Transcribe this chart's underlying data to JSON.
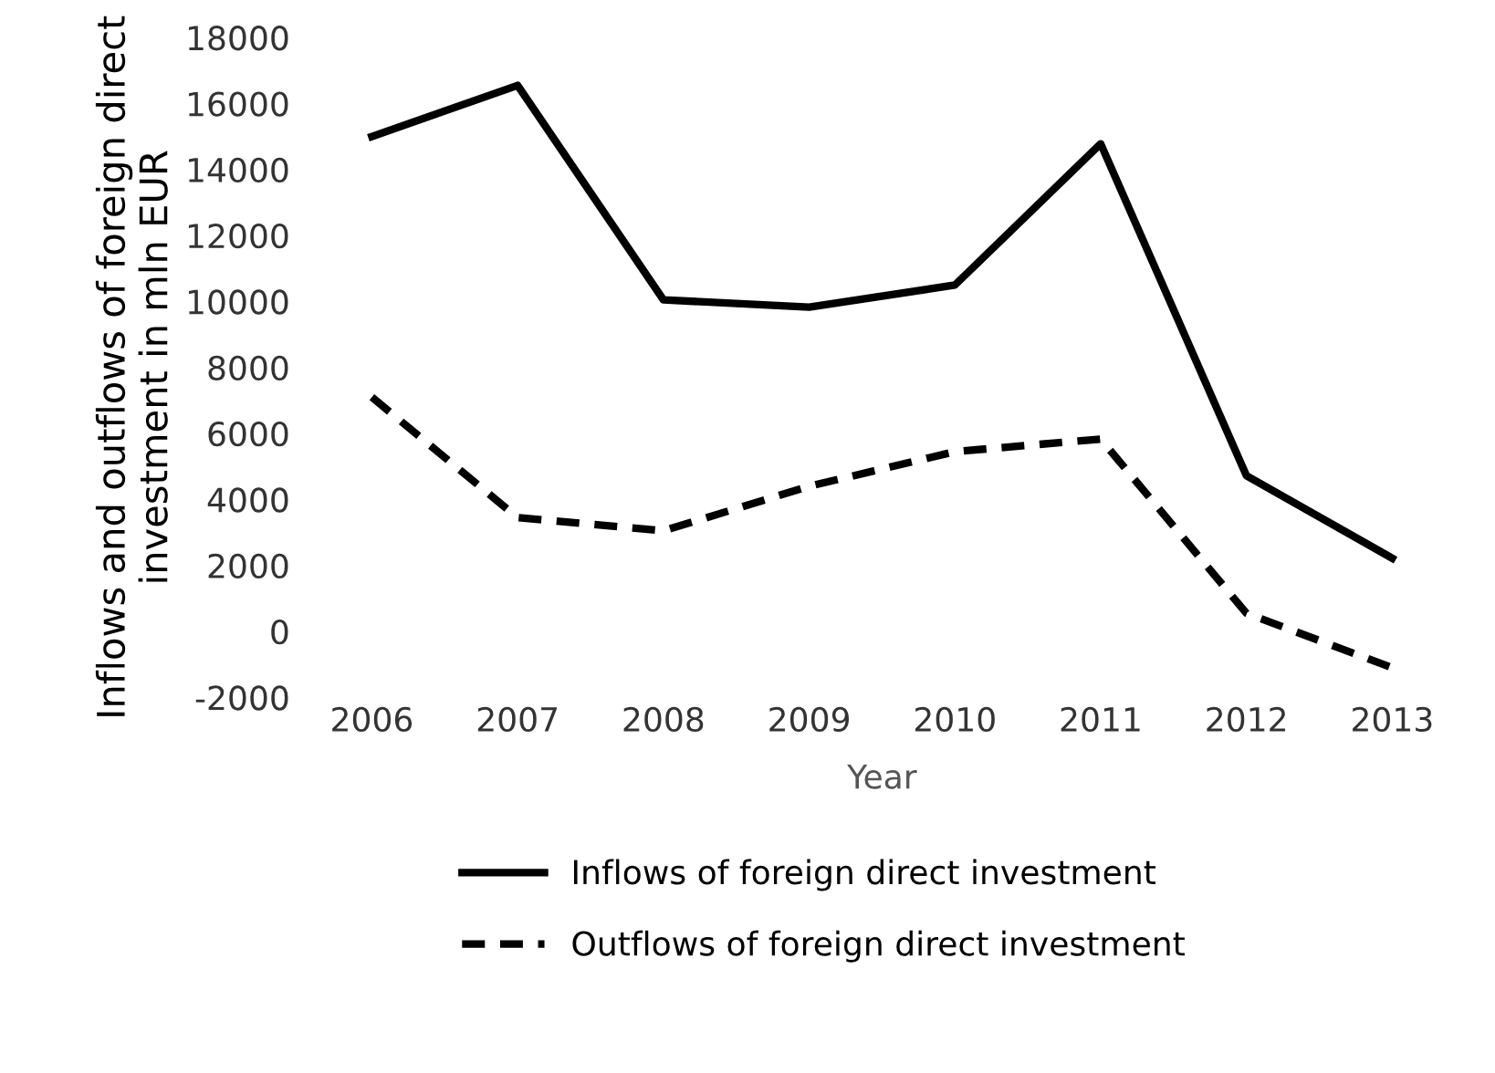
{
  "chart_data": {
    "type": "line",
    "xlabel": "Year",
    "ylabel": "Inflows and outflows of foreign direct investment in mln EUR",
    "categories": [
      "2006",
      "2007",
      "2008",
      "2009",
      "2010",
      "2011",
      "2012",
      "2013"
    ],
    "series": [
      {
        "name": "Inflows of foreign direct investment",
        "color": "#000000",
        "line_style": "solid",
        "values": [
          15000,
          16550,
          10050,
          9830,
          10500,
          14780,
          4720,
          2220
        ]
      },
      {
        "name": "Outflows of foreign direct investment",
        "color": "#000000",
        "line_style": "dashed",
        "values": [
          7100,
          3450,
          3050,
          4400,
          5450,
          5830,
          550,
          -1100
        ]
      }
    ],
    "ylim": [
      -2000,
      18000
    ],
    "yticks": [
      -2000,
      0,
      2000,
      4000,
      6000,
      8000,
      10000,
      12000,
      14000,
      16000,
      18000
    ],
    "grid": false,
    "legend": "bottom",
    "marker": "none"
  }
}
